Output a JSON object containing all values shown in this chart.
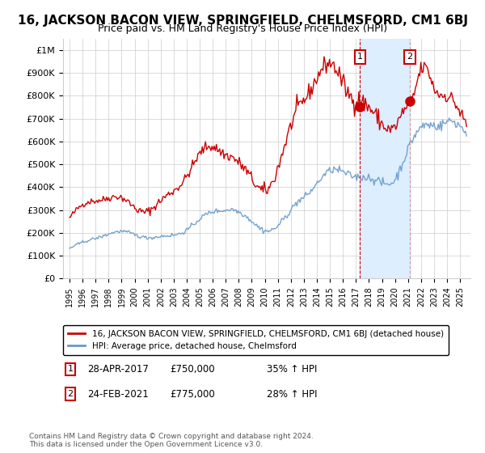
{
  "title": "16, JACKSON BACON VIEW, SPRINGFIELD, CHELMSFORD, CM1 6BJ",
  "subtitle": "Price paid vs. HM Land Registry's House Price Index (HPI)",
  "title_fontsize": 11,
  "subtitle_fontsize": 9,
  "legend_line1": "16, JACKSON BACON VIEW, SPRINGFIELD, CHELMSFORD, CM1 6BJ (detached house)",
  "legend_line2": "HPI: Average price, detached house, Chelmsford",
  "annotation1_label": "1",
  "annotation1_date": "28-APR-2017",
  "annotation1_price": "£750,000",
  "annotation1_pct": "35% ↑ HPI",
  "annotation2_label": "2",
  "annotation2_date": "24-FEB-2021",
  "annotation2_price": "£775,000",
  "annotation2_pct": "28% ↑ HPI",
  "copyright_text": "Contains HM Land Registry data © Crown copyright and database right 2024.\nThis data is licensed under the Open Government Licence v3.0.",
  "red_color": "#cc0000",
  "blue_color": "#6699cc",
  "vline1_color": "#cc0000",
  "vline2_color": "#cc9999",
  "highlight_color": "#ddeeff",
  "background_color": "#ffffff",
  "grid_color": "#cccccc",
  "ylim": [
    0,
    1050000
  ],
  "yticks": [
    0,
    100000,
    200000,
    300000,
    400000,
    500000,
    600000,
    700000,
    800000,
    900000,
    1000000
  ],
  "ytick_labels": [
    "£0",
    "£100K",
    "£200K",
    "£300K",
    "£400K",
    "£500K",
    "£600K",
    "£700K",
    "£800K",
    "£900K",
    "£1M"
  ],
  "point1_x": 2017.32,
  "point1_y": 750000,
  "point2_x": 2021.15,
  "point2_y": 775000,
  "vline1_x": 2017.32,
  "vline2_x": 2021.15,
  "highlight_x_start": 2017.32,
  "highlight_x_end": 2021.15,
  "xlim_start": 1994.5,
  "xlim_end": 2025.8
}
